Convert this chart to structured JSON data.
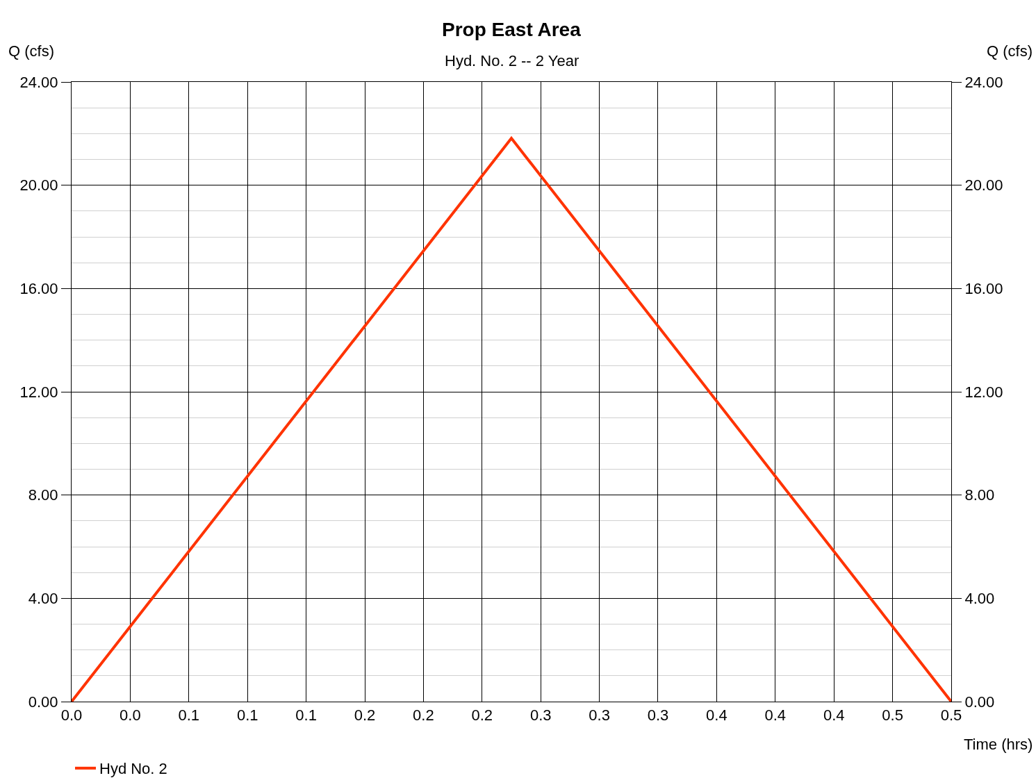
{
  "chart_data": {
    "type": "line",
    "title": "Prop East Area",
    "subtitle": "Hyd. No. 2 -- 2 Year",
    "xlabel": "Time (hrs)",
    "ylabel": "Q (cfs)",
    "y2label": "Q (cfs)",
    "series": [
      {
        "name": "Hyd No. 2",
        "color": "#ff3300",
        "x": [
          0,
          0.25,
          0.5
        ],
        "values": [
          0,
          21.82,
          0
        ]
      }
    ],
    "xlim": [
      0,
      0.5
    ],
    "xticks": [
      {
        "value": 0,
        "label": "0.0"
      },
      {
        "value": 0.03333,
        "label": "0.0"
      },
      {
        "value": 0.06667,
        "label": "0.1"
      },
      {
        "value": 0.1,
        "label": "0.1"
      },
      {
        "value": 0.13333,
        "label": "0.1"
      },
      {
        "value": 0.16667,
        "label": "0.2"
      },
      {
        "value": 0.2,
        "label": "0.2"
      },
      {
        "value": 0.23333,
        "label": "0.2"
      },
      {
        "value": 0.26667,
        "label": "0.3"
      },
      {
        "value": 0.3,
        "label": "0.3"
      },
      {
        "value": 0.33333,
        "label": "0.3"
      },
      {
        "value": 0.36667,
        "label": "0.4"
      },
      {
        "value": 0.4,
        "label": "0.4"
      },
      {
        "value": 0.43333,
        "label": "0.4"
      },
      {
        "value": 0.46667,
        "label": "0.5"
      },
      {
        "value": 0.5,
        "label": "0.5"
      }
    ],
    "ylim": [
      0,
      24
    ],
    "yticks": [
      {
        "value": 0,
        "label": "0.00"
      },
      {
        "value": 4,
        "label": "4.00"
      },
      {
        "value": 8,
        "label": "8.00"
      },
      {
        "value": 12,
        "label": "12.00"
      },
      {
        "value": 16,
        "label": "16.00"
      },
      {
        "value": 20,
        "label": "20.00"
      },
      {
        "value": 24,
        "label": "24.00"
      }
    ],
    "y2lim": [
      0,
      24
    ],
    "y2ticks": [
      {
        "value": 0,
        "label": "0.00"
      },
      {
        "value": 4,
        "label": "4.00"
      },
      {
        "value": 8,
        "label": "8.00"
      },
      {
        "value": 12,
        "label": "12.00"
      },
      {
        "value": 16,
        "label": "16.00"
      },
      {
        "value": 20,
        "label": "20.00"
      },
      {
        "value": 24,
        "label": "24.00"
      }
    ],
    "grid": true,
    "legend": "bottom left",
    "marker": "none",
    "line_style": "solid"
  }
}
